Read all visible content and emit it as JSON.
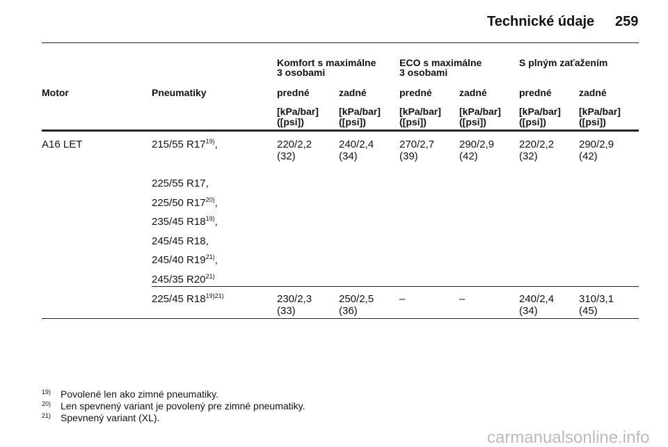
{
  "header": {
    "title": "Technické údaje",
    "page": "259"
  },
  "table": {
    "groups": [
      {
        "lines": [
          "Komfort s maximálne",
          "3 osobami"
        ]
      },
      {
        "lines": [
          "ECO s maximálne",
          "3 osobami"
        ]
      },
      {
        "lines": [
          "S plným zaťažením"
        ]
      }
    ],
    "columns": [
      "Motor",
      "Pneumatiky",
      "predné",
      "zadné",
      "predné",
      "zadné",
      "predné",
      "zadné"
    ],
    "units": [
      [
        "[kPa/bar]",
        "([psi])"
      ],
      [
        "[kPa/bar]",
        "([psi])"
      ],
      [
        "[kPa/bar]",
        "([psi])"
      ],
      [
        "[kPa/bar]",
        "([psi])"
      ],
      [
        "[kPa/bar]",
        "([psi])"
      ],
      [
        "[kPa/bar]",
        "([psi])"
      ]
    ],
    "rows": [
      {
        "motor": "A16 LET",
        "tires": [
          {
            "text": "215/55 R17",
            "note": "19)",
            "suffix": ","
          },
          {
            "text": "225/55 R17,"
          },
          {
            "text": "225/50 R17",
            "note": "20)",
            "suffix": ","
          },
          {
            "text": "235/45 R18",
            "note": "19)",
            "suffix": ","
          },
          {
            "text": "245/45 R18,"
          },
          {
            "text": "245/40 R19",
            "note": "21)",
            "suffix": ","
          },
          {
            "text": "245/35 R20",
            "note": "21)"
          }
        ],
        "values": [
          [
            "220/2,2",
            "(32)"
          ],
          [
            "240/2,4",
            "(34)"
          ],
          [
            "270/2,7",
            "(39)"
          ],
          [
            "290/2,9",
            "(42)"
          ],
          [
            "220/2,2",
            "(32)"
          ],
          [
            "290/2,9",
            "(42)"
          ]
        ]
      },
      {
        "tires": [
          {
            "text": "225/45 R18",
            "note": "19)21)"
          }
        ],
        "values": [
          [
            "230/2,3",
            "(33)"
          ],
          [
            "250/2,5",
            "(36)"
          ],
          [
            "–"
          ],
          [
            "–"
          ],
          [
            "240/2,4",
            "(34)"
          ],
          [
            "310/3,1",
            "(45)"
          ]
        ]
      }
    ]
  },
  "footnotes": [
    {
      "mark": "19)",
      "text": "Povolené len ako zimné pneumatiky."
    },
    {
      "mark": "20)",
      "text": "Len spevnený variant je povolený pre zimné pneumatiky."
    },
    {
      "mark": "21)",
      "text": "Spevnený variant (XL)."
    }
  ],
  "watermark": "carmanualsonline.info"
}
